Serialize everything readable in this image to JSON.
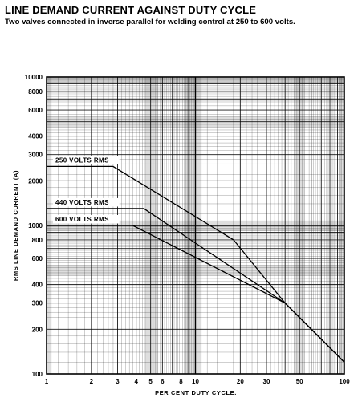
{
  "chart_data": {
    "type": "line",
    "title": "LINE DEMAND CURRENT AGAINST DUTY CYCLE",
    "subtitle": "Two valves connected in inverse parallel for welding control at 250 to 600 volts.",
    "xlabel": "PER CENT DUTY CYCLE.",
    "ylabel": "RMS LINE DEMAND CURRENT (A)",
    "x_scale": "log",
    "y_scale": "log",
    "xlim": [
      1,
      100
    ],
    "ylim": [
      100,
      10000
    ],
    "grid": true,
    "x_ticks": [
      1,
      2,
      3,
      4,
      5,
      6,
      8,
      10,
      20,
      30,
      50,
      100
    ],
    "x_tick_labels": [
      "1",
      "2",
      "3",
      "4",
      "5",
      "6",
      "8",
      "10",
      "20",
      "30",
      "50",
      "100"
    ],
    "y_ticks": [
      100,
      200,
      300,
      400,
      600,
      800,
      1000,
      2000,
      3000,
      4000,
      6000,
      8000,
      10000
    ],
    "y_tick_labels": [
      "100",
      "200",
      "300",
      "400",
      "600",
      "800",
      "1000",
      "2000",
      "3000",
      "4000",
      "6000",
      "8000",
      "10000"
    ],
    "series": [
      {
        "name": "250 VOLTS RMS",
        "x": [
          1,
          2.8,
          18,
          40,
          100
        ],
        "y": [
          2500,
          2500,
          800,
          300,
          120
        ]
      },
      {
        "name": "440 VOLTS RMS",
        "x": [
          1,
          4.5,
          40,
          100
        ],
        "y": [
          1300,
          1300,
          300,
          120
        ]
      },
      {
        "name": "600 VOLTS RMS",
        "x": [
          1,
          3.8,
          40,
          100
        ],
        "y": [
          1000,
          1000,
          300,
          120
        ]
      }
    ]
  }
}
